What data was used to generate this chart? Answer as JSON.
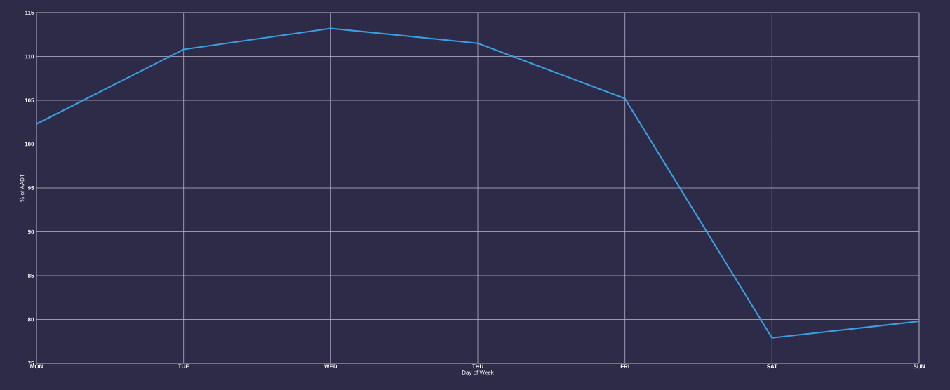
{
  "chart_data": {
    "type": "line",
    "xlabel": "Day of Week",
    "ylabel": "% of AADT",
    "categories": [
      "MON",
      "TUE",
      "WED",
      "THU",
      "FRI",
      "SAT",
      "SUN"
    ],
    "series": [
      {
        "color": "#3a9ee0",
        "values": [
          102.3,
          110.8,
          113.2,
          111.5,
          105.2,
          77.9,
          79.8
        ]
      }
    ],
    "ylim": [
      75,
      115
    ],
    "yticks": [
      75,
      80,
      85,
      90,
      95,
      100,
      105,
      110,
      115
    ],
    "grid": true,
    "marker": "none",
    "line_style": "solid"
  }
}
